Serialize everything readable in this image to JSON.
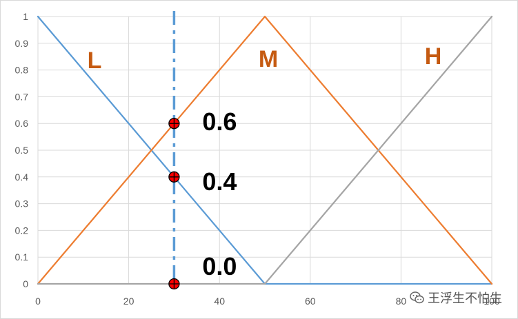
{
  "chart_data": {
    "type": "line",
    "xlim": [
      0,
      100
    ],
    "ylim": [
      0,
      1
    ],
    "xticks": [
      "0",
      "20",
      "40",
      "60",
      "80",
      "100"
    ],
    "yticks": [
      "0",
      "0.1",
      "0.2",
      "0.3",
      "0.4",
      "0.5",
      "0.6",
      "0.7",
      "0.8",
      "0.9",
      "1"
    ],
    "grid": true,
    "series": [
      {
        "name": "L",
        "x": [
          0,
          50,
          100
        ],
        "y": [
          1,
          0,
          0
        ],
        "color": "#5b9bd5"
      },
      {
        "name": "M",
        "x": [
          0,
          50,
          100
        ],
        "y": [
          0,
          1,
          0
        ],
        "color": "#ed7d31"
      },
      {
        "name": "H",
        "x": [
          0,
          50,
          100
        ],
        "y": [
          0,
          0,
          1
        ],
        "color": "#a5a5a5"
      }
    ],
    "series_label_color": "#c55a11",
    "reference_line": {
      "x": 30,
      "color": "#5b9bd5"
    },
    "points": [
      {
        "x": 30,
        "y": 0.6,
        "label": "0.6"
      },
      {
        "x": 30,
        "y": 0.4,
        "label": "0.4"
      },
      {
        "x": 30,
        "y": 0.0,
        "label": "0.0"
      }
    ],
    "marker_color": "#ff0000"
  },
  "watermark": {
    "icon": "wechat-icon",
    "text": "王浮生不怕生"
  }
}
